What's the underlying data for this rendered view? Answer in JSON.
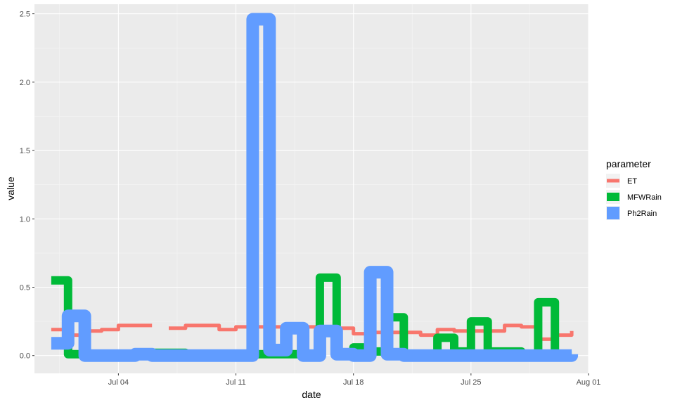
{
  "chart_data": {
    "type": "line",
    "xlabel": "date",
    "ylabel": "value",
    "x_tick_labels": [
      "Jul 04",
      "Jul 11",
      "Jul 18",
      "Jul 25",
      "Aug 01"
    ],
    "x_tick_dates": [
      "2023-07-04",
      "2023-07-11",
      "2023-07-18",
      "2023-07-25",
      "2023-08-01"
    ],
    "y_ticks": [
      0.0,
      0.5,
      1.0,
      1.5,
      2.0,
      2.5
    ],
    "y_tick_labels": [
      "0.0",
      "0.5",
      "1.0",
      "1.5",
      "2.0",
      "2.5"
    ],
    "xlim": [
      "2023-06-29",
      "2023-08-01"
    ],
    "ylim": [
      -0.13,
      2.57
    ],
    "grid": true,
    "legend": {
      "title": "parameter",
      "position": "right"
    },
    "series": [
      {
        "name": "ET",
        "color": "#F8766D",
        "line_width": 5,
        "points": [
          [
            "2023-06-30",
            0.19
          ],
          [
            "2023-07-01",
            0.19
          ],
          [
            "2023-07-01",
            0.15
          ],
          [
            "2023-07-02",
            0.15
          ],
          [
            "2023-07-02",
            0.18
          ],
          [
            "2023-07-03",
            0.18
          ],
          [
            "2023-07-03",
            0.19
          ],
          [
            "2023-07-04",
            0.19
          ],
          [
            "2023-07-04",
            0.22
          ],
          [
            "2023-07-06",
            0.22
          ],
          null,
          [
            "2023-07-07",
            0.2
          ],
          [
            "2023-07-08",
            0.2
          ],
          [
            "2023-07-08",
            0.22
          ],
          [
            "2023-07-10",
            0.22
          ],
          [
            "2023-07-10",
            0.19
          ],
          [
            "2023-07-11",
            0.19
          ],
          [
            "2023-07-11",
            0.21
          ],
          [
            "2023-07-17",
            0.21
          ],
          [
            "2023-07-17",
            0.2
          ],
          [
            "2023-07-18",
            0.2
          ],
          [
            "2023-07-18",
            0.16
          ],
          [
            "2023-07-19",
            0.16
          ],
          [
            "2023-07-19",
            0.17
          ],
          [
            "2023-07-22",
            0.17
          ],
          [
            "2023-07-22",
            0.15
          ],
          [
            "2023-07-23",
            0.15
          ],
          [
            "2023-07-23",
            0.19
          ],
          [
            "2023-07-24",
            0.19
          ],
          [
            "2023-07-24",
            0.18
          ],
          [
            "2023-07-27",
            0.18
          ],
          [
            "2023-07-27",
            0.22
          ],
          [
            "2023-07-28",
            0.22
          ],
          [
            "2023-07-28",
            0.21
          ],
          [
            "2023-07-29",
            0.21
          ],
          [
            "2023-07-29",
            0.12
          ],
          [
            "2023-07-30",
            0.12
          ],
          [
            "2023-07-30",
            0.15
          ],
          [
            "2023-07-31",
            0.15
          ],
          [
            "2023-07-31",
            0.18
          ]
        ]
      },
      {
        "name": "MFWRain",
        "color": "#00BA38",
        "line_width": 12,
        "points": [
          [
            "2023-06-30",
            0.55
          ],
          [
            "2023-07-01",
            0.55
          ],
          [
            "2023-07-01",
            0.01
          ],
          [
            "2023-07-02",
            0.01
          ],
          [
            "2023-07-02",
            0.0
          ],
          [
            "2023-07-04",
            0.0
          ],
          [
            "2023-07-04",
            0.0
          ],
          [
            "2023-07-06",
            0.0
          ],
          [
            "2023-07-06",
            0.02
          ],
          [
            "2023-07-08",
            0.02
          ],
          [
            "2023-07-08",
            0.0
          ],
          [
            "2023-07-12",
            0.0
          ],
          [
            "2023-07-12",
            0.01
          ],
          [
            "2023-07-16",
            0.01
          ],
          [
            "2023-07-16",
            0.57
          ],
          [
            "2023-07-17",
            0.57
          ],
          [
            "2023-07-17",
            0.01
          ],
          [
            "2023-07-18",
            0.01
          ],
          [
            "2023-07-18",
            0.06
          ],
          [
            "2023-07-19",
            0.06
          ],
          [
            "2023-07-19",
            0.03
          ],
          [
            "2023-07-20",
            0.03
          ],
          [
            "2023-07-20",
            0.28
          ],
          [
            "2023-07-21",
            0.28
          ],
          [
            "2023-07-21",
            0.0
          ],
          [
            "2023-07-23",
            0.0
          ],
          [
            "2023-07-23",
            0.13
          ],
          [
            "2023-07-24",
            0.13
          ],
          [
            "2023-07-24",
            0.03
          ],
          [
            "2023-07-25",
            0.03
          ],
          [
            "2023-07-25",
            0.25
          ],
          [
            "2023-07-26",
            0.25
          ],
          [
            "2023-07-26",
            0.03
          ],
          [
            "2023-07-28",
            0.03
          ],
          [
            "2023-07-28",
            0.0
          ],
          [
            "2023-07-29",
            0.0
          ],
          [
            "2023-07-29",
            0.39
          ],
          [
            "2023-07-30",
            0.39
          ],
          [
            "2023-07-30",
            0.0
          ],
          [
            "2023-07-31",
            0.0
          ]
        ]
      },
      {
        "name": "Ph2Rain",
        "color": "#619CFF",
        "line_width": 18,
        "points": [
          [
            "2023-06-30",
            0.09
          ],
          [
            "2023-07-01",
            0.09
          ],
          [
            "2023-07-01",
            0.29
          ],
          [
            "2023-07-02",
            0.29
          ],
          [
            "2023-07-02",
            0.0
          ],
          [
            "2023-07-05",
            0.0
          ],
          [
            "2023-07-05",
            0.01
          ],
          [
            "2023-07-06",
            0.01
          ],
          [
            "2023-07-06",
            0.0
          ],
          [
            "2023-07-12",
            0.0
          ],
          [
            "2023-07-12",
            2.46
          ],
          [
            "2023-07-13",
            2.46
          ],
          [
            "2023-07-13",
            0.04
          ],
          [
            "2023-07-14",
            0.04
          ],
          [
            "2023-07-14",
            0.2
          ],
          [
            "2023-07-15",
            0.2
          ],
          [
            "2023-07-15",
            0.0
          ],
          [
            "2023-07-16",
            0.0
          ],
          [
            "2023-07-16",
            0.18
          ],
          [
            "2023-07-17",
            0.18
          ],
          [
            "2023-07-17",
            0.01
          ],
          [
            "2023-07-18",
            0.01
          ],
          [
            "2023-07-18",
            0.0
          ],
          [
            "2023-07-19",
            0.0
          ],
          [
            "2023-07-19",
            0.61
          ],
          [
            "2023-07-20",
            0.61
          ],
          [
            "2023-07-20",
            0.01
          ],
          [
            "2023-07-21",
            0.01
          ],
          [
            "2023-07-21",
            0.0
          ],
          [
            "2023-07-31",
            0.0
          ],
          [
            "2023-07-31",
            0.01
          ]
        ]
      }
    ]
  }
}
